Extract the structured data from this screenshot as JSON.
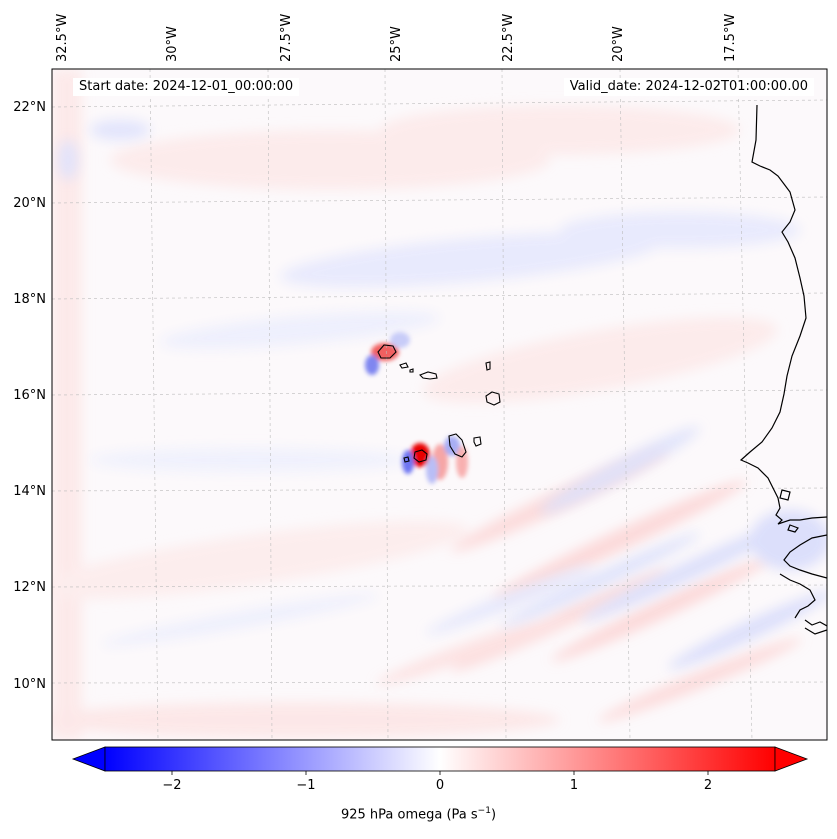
{
  "header": {
    "start_date": "Start date: 2024-12-01_00:00:00",
    "valid_date": "Valid_date: 2024-12-02T01:00:00.00"
  },
  "map": {
    "lon_ticks": [
      "32.5°W",
      "30°W",
      "27.5°W",
      "25°W",
      "22.5°W",
      "20°W",
      "17.5°W"
    ],
    "lat_ticks": [
      "22°N",
      "20°N",
      "18°N",
      "16°N",
      "14°N",
      "12°N",
      "10°N"
    ],
    "lon_values": [
      -32.5,
      -30,
      -27.5,
      -25,
      -22.5,
      -20,
      -17.5
    ],
    "lat_values": [
      22,
      20,
      18,
      16,
      14,
      12,
      10
    ],
    "field_colors": {
      "negative": "#0000ff",
      "neutral": "#ffffff",
      "positive": "#ff0000"
    }
  },
  "colorbar": {
    "ticks": [
      "−2",
      "−1",
      "0",
      "1",
      "2"
    ],
    "tick_values": [
      -2,
      -1,
      0,
      1,
      2
    ],
    "range": [
      -2.5,
      2.5
    ],
    "label_main": "925 hPa omega (Pa s",
    "label_exp": "−1",
    "label_end": ")"
  }
}
